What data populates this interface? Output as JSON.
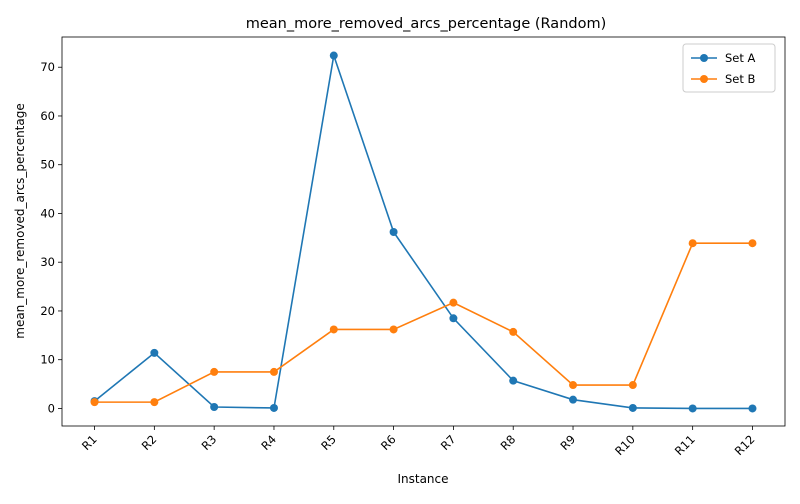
{
  "chart_data": {
    "type": "line",
    "title": "mean_more_removed_arcs_percentage (Random)",
    "xlabel": "Instance",
    "ylabel": "mean_more_removed_arcs_percentage",
    "categories": [
      "R1",
      "R2",
      "R3",
      "R4",
      "R5",
      "R6",
      "R7",
      "R8",
      "R9",
      "R10",
      "R11",
      "R12"
    ],
    "ylim": [
      -3.6,
      76.2
    ],
    "yticks": [
      0,
      10,
      20,
      30,
      40,
      50,
      60,
      70
    ],
    "grid": false,
    "legend_position": "top-right",
    "series": [
      {
        "name": "Set A",
        "color": "#1f77b4",
        "marker": "circle",
        "values": [
          1.5,
          11.4,
          0.3,
          0.1,
          72.4,
          36.2,
          18.5,
          5.7,
          1.8,
          0.1,
          0.0,
          0.0
        ]
      },
      {
        "name": "Set B",
        "color": "#ff7f0e",
        "marker": "circle",
        "values": [
          1.3,
          1.3,
          7.5,
          7.5,
          16.2,
          16.2,
          21.7,
          15.7,
          4.8,
          4.8,
          33.9,
          33.9
        ]
      }
    ]
  }
}
